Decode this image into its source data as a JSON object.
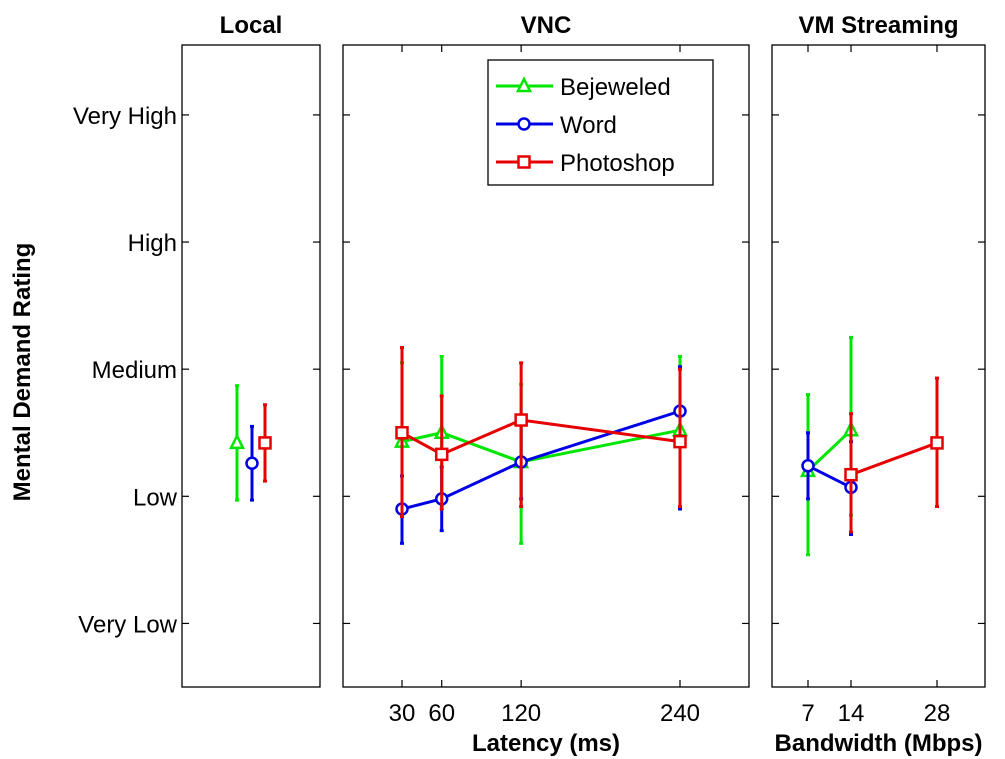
{
  "colors": {
    "Bejeweled": "#00e600",
    "Word": "#0000e6",
    "Photoshop": "#e60000"
  },
  "y_axis": {
    "label": "Mental Demand Rating",
    "ticks": [
      {
        "value": 1,
        "label": "Very Low"
      },
      {
        "value": 2,
        "label": "Low"
      },
      {
        "value": 3,
        "label": "Medium"
      },
      {
        "value": 4,
        "label": "High"
      },
      {
        "value": 5,
        "label": "Very High"
      }
    ]
  },
  "legend": [
    "Bejeweled",
    "Word",
    "Photoshop"
  ],
  "chart_data": [
    {
      "type": "line",
      "title": "Local",
      "xlabel": "",
      "ylim": [
        0.5,
        5.55
      ],
      "series": [
        {
          "name": "Bejeweled",
          "marker": "triangle",
          "x": [
            0
          ],
          "y": [
            2.42
          ],
          "err_low": [
            1.97
          ],
          "err_high": [
            2.87
          ]
        },
        {
          "name": "Word",
          "marker": "circle",
          "x": [
            0
          ],
          "y": [
            2.26
          ],
          "err_low": [
            1.97
          ],
          "err_high": [
            2.55
          ]
        },
        {
          "name": "Photoshop",
          "marker": "square",
          "x": [
            0
          ],
          "y": [
            2.42
          ],
          "err_low": [
            2.12
          ],
          "err_high": [
            2.72
          ]
        }
      ]
    },
    {
      "type": "line",
      "title": "VNC",
      "xlabel": "Latency (ms)",
      "x_ticks": [
        30,
        60,
        120,
        240
      ],
      "ylim": [
        0.5,
        5.55
      ],
      "legend_position": "top-right",
      "series": [
        {
          "name": "Bejeweled",
          "marker": "triangle",
          "x": [
            30,
            60,
            120,
            240
          ],
          "y": [
            2.43,
            2.5,
            2.27,
            2.52
          ],
          "err_low": [
            1.9,
            1.93,
            1.63,
            1.92
          ],
          "err_high": [
            3.05,
            3.1,
            2.88,
            3.1
          ]
        },
        {
          "name": "Word",
          "marker": "circle",
          "x": [
            30,
            60,
            120,
            240
          ],
          "y": [
            1.9,
            1.98,
            2.27,
            2.67
          ],
          "err_low": [
            1.63,
            1.73,
            1.98,
            1.9
          ],
          "err_high": [
            2.16,
            2.23,
            2.58,
            3.02
          ]
        },
        {
          "name": "Photoshop",
          "marker": "square",
          "x": [
            30,
            60,
            120,
            240
          ],
          "y": [
            2.5,
            2.33,
            2.6,
            2.43
          ],
          "err_low": [
            1.84,
            1.9,
            1.92,
            1.92
          ],
          "err_high": [
            3.17,
            2.79,
            3.05,
            3.0
          ]
        }
      ]
    },
    {
      "type": "line",
      "title": "VM Streaming",
      "xlabel": "Bandwidth (Mbps)",
      "x_ticks": [
        7,
        14,
        28
      ],
      "ylim": [
        0.5,
        5.55
      ],
      "series": [
        {
          "name": "Bejeweled",
          "marker": "triangle",
          "x": [
            7,
            14
          ],
          "y": [
            2.2,
            2.52
          ],
          "err_low": [
            1.54,
            1.85
          ],
          "err_high": [
            2.8,
            3.25
          ]
        },
        {
          "name": "Word",
          "marker": "circle",
          "x": [
            7,
            14
          ],
          "y": [
            2.24,
            2.07
          ],
          "err_low": [
            1.98,
            1.7
          ],
          "err_high": [
            2.5,
            2.43
          ]
        },
        {
          "name": "Photoshop",
          "marker": "square",
          "x": [
            14,
            28
          ],
          "y": [
            2.17,
            2.42
          ],
          "err_low": [
            1.72,
            1.92
          ],
          "err_high": [
            2.65,
            2.93
          ]
        }
      ]
    }
  ]
}
